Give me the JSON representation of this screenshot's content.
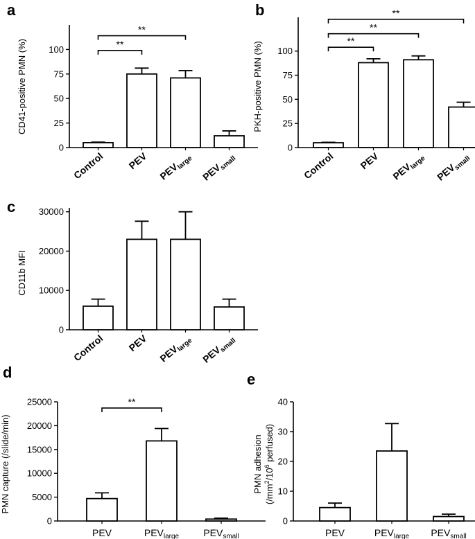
{
  "chart_data": [
    {
      "id": "a",
      "type": "bar",
      "panel_label": "a",
      "ylabel": "CD41-positive PMN (%)",
      "ylim": [
        0,
        125
      ],
      "yticks": [
        0,
        25,
        50,
        75,
        100
      ],
      "ytick_labels": [
        "0",
        "25",
        "50",
        "75",
        "100"
      ],
      "categories": [
        {
          "main": "Control",
          "sub": ""
        },
        {
          "main": "PEV",
          "sub": ""
        },
        {
          "main": "PEV",
          "sub": "large"
        },
        {
          "main": "PEV",
          "sub": "small"
        }
      ],
      "values": [
        5,
        75,
        71,
        12
      ],
      "errors": [
        0.5,
        6,
        7.5,
        5
      ],
      "significance": [
        {
          "from": 0,
          "to": 1,
          "y": 99,
          "label": "**"
        },
        {
          "from": 0,
          "to": 2,
          "y": 114,
          "label": "**"
        }
      ]
    },
    {
      "id": "b",
      "type": "bar",
      "panel_label": "b",
      "ylabel": "PKH-positive PMN (%)",
      "ylim": [
        0,
        135
      ],
      "yticks": [
        0,
        25,
        50,
        75,
        100
      ],
      "ytick_labels": [
        "0",
        "25",
        "50",
        "75",
        "100"
      ],
      "categories": [
        {
          "main": "Control",
          "sub": ""
        },
        {
          "main": "PEV",
          "sub": ""
        },
        {
          "main": "PEV",
          "sub": "large"
        },
        {
          "main": "PEV",
          "sub": "small"
        }
      ],
      "values": [
        5,
        88,
        91,
        42
      ],
      "errors": [
        0.5,
        4,
        4,
        5
      ],
      "significance": [
        {
          "from": 0,
          "to": 1,
          "y": 104,
          "label": "**"
        },
        {
          "from": 0,
          "to": 2,
          "y": 118,
          "label": "**"
        },
        {
          "from": 0,
          "to": 3,
          "y": 133,
          "label": "**"
        }
      ]
    },
    {
      "id": "c",
      "type": "bar",
      "panel_label": "c",
      "ylabel": "CD11b MFI",
      "ylim": [
        0,
        31000
      ],
      "yticks": [
        0,
        10000,
        20000,
        30000
      ],
      "ytick_labels": [
        "0",
        "10000",
        "20000",
        "30000"
      ],
      "categories": [
        {
          "main": "Control",
          "sub": ""
        },
        {
          "main": "PEV",
          "sub": ""
        },
        {
          "main": "PEV",
          "sub": "large"
        },
        {
          "main": "PEV",
          "sub": "small"
        }
      ],
      "values": [
        6000,
        23000,
        23000,
        5800
      ],
      "errors": [
        1800,
        4600,
        7000,
        2000
      ],
      "significance": []
    },
    {
      "id": "d",
      "type": "bar",
      "panel_label": "d",
      "ylabel": "PMN capture (/slide/min)",
      "ylim": [
        0,
        25000
      ],
      "yticks": [
        0,
        5000,
        10000,
        15000,
        20000,
        25000
      ],
      "ytick_labels": [
        "0",
        "5000",
        "10000",
        "15000",
        "20000",
        "25000"
      ],
      "categories": [
        {
          "main": "PEV",
          "sub": ""
        },
        {
          "main": "PEV",
          "sub": "large"
        },
        {
          "main": "PEV",
          "sub": "small"
        }
      ],
      "values": [
        4700,
        16800,
        400
      ],
      "errors": [
        1200,
        2600,
        200
      ],
      "significance": [
        {
          "from": 0,
          "to": 1,
          "y": 23700,
          "label": "**"
        }
      ]
    },
    {
      "id": "e",
      "type": "bar",
      "panel_label": "e",
      "ylabel_line1": "PMN adhesion",
      "ylabel_line2_parts": [
        "(/mm",
        "2",
        "/10",
        "6",
        " perfused)"
      ],
      "ylim": [
        0,
        40
      ],
      "yticks": [
        0,
        10,
        20,
        30,
        40
      ],
      "ytick_labels": [
        "0",
        "10",
        "20",
        "30",
        "40"
      ],
      "categories": [
        {
          "main": "PEV",
          "sub": ""
        },
        {
          "main": "PEV",
          "sub": "large"
        },
        {
          "main": "PEV",
          "sub": "small"
        }
      ],
      "values": [
        4.5,
        23.5,
        1.5
      ],
      "errors": [
        1.5,
        9.2,
        0.8
      ],
      "significance": []
    }
  ]
}
